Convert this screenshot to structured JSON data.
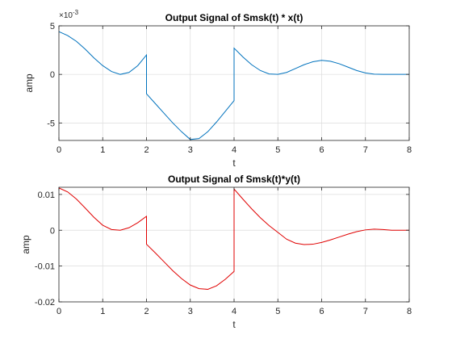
{
  "chart_data": [
    {
      "type": "line",
      "title": "Output Signal of Smsk(t) * x(t)",
      "xlabel": "t",
      "ylabel": "amp",
      "y_multiplier": "× 10^-3",
      "xlim": [
        0,
        8
      ],
      "ylim": [
        -6.8,
        5
      ],
      "xticks": [
        0,
        1,
        2,
        3,
        4,
        5,
        6,
        7,
        8
      ],
      "yticks": [
        -5,
        0,
        5
      ],
      "grid": true,
      "color": "#0072BD",
      "series": [
        {
          "x": [
            0,
            0.2,
            0.4,
            0.6,
            0.8,
            1.0,
            1.2,
            1.4,
            1.6,
            1.8,
            2.0,
            2.0,
            2.2,
            2.4,
            2.6,
            2.8,
            3.0,
            3.2,
            3.4,
            3.6,
            3.8,
            4.0,
            4.0,
            4.2,
            4.4,
            4.6,
            4.8,
            5.0,
            5.2,
            5.4,
            5.6,
            5.8,
            6.0,
            6.2,
            6.4,
            6.6,
            6.8,
            7.0,
            7.2,
            7.4,
            7.6,
            7.8,
            8.0
          ],
          "y": [
            4.4,
            4.0,
            3.4,
            2.6,
            1.7,
            0.9,
            0.3,
            0.0,
            0.2,
            0.9,
            2.0,
            -2.0,
            -3.0,
            -4.0,
            -5.0,
            -5.9,
            -6.7,
            -6.6,
            -5.9,
            -4.9,
            -3.8,
            -2.7,
            2.7,
            1.8,
            1.0,
            0.4,
            0.05,
            0.0,
            0.2,
            0.6,
            1.0,
            1.3,
            1.45,
            1.35,
            1.1,
            0.75,
            0.4,
            0.15,
            0.02,
            0.0,
            0.0,
            0.0,
            0.0
          ]
        }
      ]
    },
    {
      "type": "line",
      "title": "Output Signal of Smsk(t)*y(t)",
      "xlabel": "t",
      "ylabel": "amp",
      "xlim": [
        0,
        8
      ],
      "ylim": [
        -0.02,
        0.012
      ],
      "xticks": [
        0,
        1,
        2,
        3,
        4,
        5,
        6,
        7,
        8
      ],
      "yticks": [
        -0.02,
        -0.01,
        0,
        0.01
      ],
      "yticklabels": [
        "-0.02",
        "-0.01",
        "0",
        "0.01"
      ],
      "grid": true,
      "color": "#E00000",
      "series": [
        {
          "x": [
            0,
            0.2,
            0.4,
            0.6,
            0.8,
            1.0,
            1.2,
            1.4,
            1.6,
            1.8,
            2.0,
            2.0,
            2.2,
            2.4,
            2.6,
            2.8,
            3.0,
            3.2,
            3.4,
            3.6,
            3.8,
            4.0,
            4.0,
            4.2,
            4.4,
            4.6,
            4.8,
            5.0,
            5.2,
            5.4,
            5.6,
            5.8,
            6.0,
            6.2,
            6.4,
            6.6,
            6.8,
            7.0,
            7.2,
            7.4,
            7.6,
            7.8,
            8.0
          ],
          "y": [
            0.0118,
            0.0107,
            0.0087,
            0.0062,
            0.0036,
            0.0014,
            0.0002,
            0.0,
            0.0007,
            0.0021,
            0.0039,
            -0.0039,
            -0.0063,
            -0.0088,
            -0.0113,
            -0.0135,
            -0.0153,
            -0.0163,
            -0.0165,
            -0.0155,
            -0.0137,
            -0.0115,
            0.0115,
            0.0087,
            0.006,
            0.0035,
            0.0013,
            -0.0006,
            -0.0025,
            -0.0036,
            -0.004,
            -0.0039,
            -0.0034,
            -0.0027,
            -0.0019,
            -0.0011,
            -0.0004,
            0.0001,
            0.0003,
            0.0002,
            0.0,
            0.0,
            0.0
          ]
        }
      ]
    }
  ]
}
